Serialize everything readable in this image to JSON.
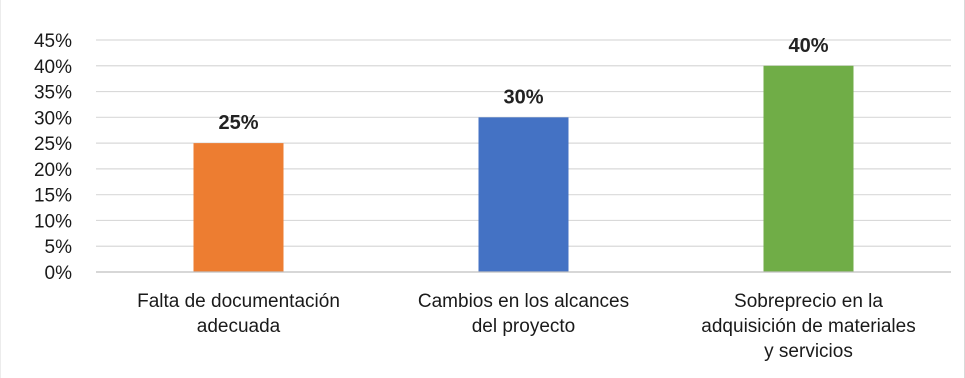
{
  "chart_data": {
    "type": "bar",
    "categories": [
      "Falta de documentación adecuada",
      "Cambios en los alcances del proyecto",
      "Sobreprecio en la adquisición de materiales y servicios"
    ],
    "category_lines": [
      [
        "Falta de documentación",
        "adecuada"
      ],
      [
        "Cambios en los alcances",
        "del proyecto"
      ],
      [
        "Sobreprecio en la",
        "adquisición de materiales",
        "y servicios"
      ]
    ],
    "values": [
      25,
      30,
      40
    ],
    "data_labels": [
      "25%",
      "30%",
      "40%"
    ],
    "colors": [
      "#ed7d31",
      "#4472c4",
      "#70ad47"
    ],
    "ylim": [
      0,
      45
    ],
    "yticks": [
      0,
      5,
      10,
      15,
      20,
      25,
      30,
      35,
      40,
      45
    ],
    "ytick_labels": [
      "0%",
      "5%",
      "10%",
      "15%",
      "20%",
      "25%",
      "30%",
      "35%",
      "40%",
      "45%"
    ],
    "title": "",
    "xlabel": "",
    "ylabel": "",
    "grid": true,
    "gridline_color": "#d9d9d9",
    "axis_color": "#bfbfbf",
    "legend": "none"
  }
}
